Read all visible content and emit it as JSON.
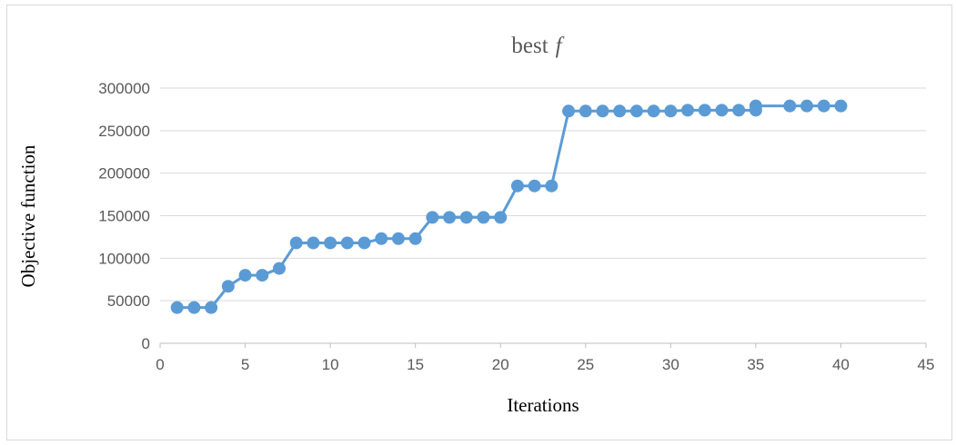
{
  "chart_data": {
    "type": "line",
    "title": "best",
    "title_italic_suffix": "f",
    "xlabel": "Iterations",
    "ylabel": "Objective function",
    "xlim": [
      0,
      45
    ],
    "ylim": [
      0,
      300000
    ],
    "x_ticks": [
      0,
      5,
      10,
      15,
      20,
      25,
      30,
      35,
      40,
      45
    ],
    "y_ticks": [
      0,
      50000,
      100000,
      150000,
      200000,
      250000,
      300000
    ],
    "grid": "horizontal",
    "legend": "none",
    "series_color": "#5b9bd5",
    "series": [
      {
        "x": [
          1,
          2,
          3,
          4,
          5,
          6,
          7,
          8,
          9,
          10,
          11,
          12,
          13,
          14,
          15,
          16,
          17,
          18,
          19,
          20,
          21,
          22,
          23,
          24,
          25,
          26,
          27,
          28,
          29,
          30,
          31,
          32,
          33,
          34,
          35,
          35,
          37,
          38,
          39,
          40
        ],
        "values": [
          42000,
          42000,
          42000,
          67000,
          80000,
          80000,
          88000,
          118000,
          118000,
          118000,
          118000,
          118000,
          123000,
          123000,
          123000,
          148000,
          148000,
          148000,
          148000,
          148000,
          185000,
          185000,
          185000,
          273000,
          273000,
          273000,
          273000,
          273000,
          273000,
          273000,
          274000,
          274000,
          274000,
          274000,
          274000,
          279000,
          279000,
          279000,
          279000,
          279000
        ]
      }
    ]
  }
}
